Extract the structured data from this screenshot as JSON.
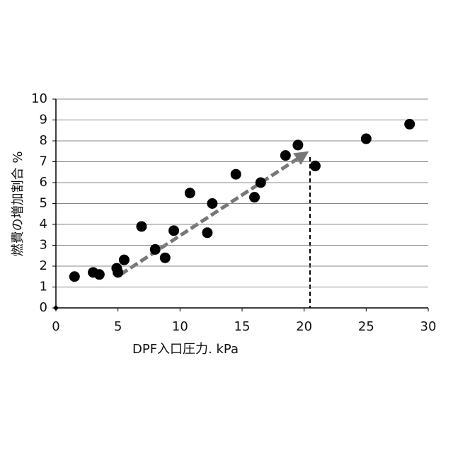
{
  "chart_data": {
    "type": "scatter",
    "x_label": "DPF入口圧力. kPa",
    "y_label": "燃費の増加割合  %",
    "xlim": [
      0,
      30
    ],
    "xticks": [
      0,
      5,
      10,
      15,
      20,
      25,
      30
    ],
    "ylim": [
      0,
      10
    ],
    "yticks": [
      0,
      1,
      2,
      3,
      4,
      5,
      6,
      7,
      8,
      9,
      10
    ],
    "grid": true,
    "series": [
      {
        "color": "#000000",
        "marker": "circle",
        "x": [
          1.5,
          3.0,
          3.5,
          4.9,
          5.0,
          5.5,
          6.9,
          8.0,
          8.8,
          9.5,
          10.8,
          12.2,
          12.6,
          14.5,
          16.0,
          16.5,
          18.5,
          19.5,
          20.9,
          25.0,
          28.5
        ],
        "values": [
          1.5,
          1.7,
          1.6,
          1.9,
          1.7,
          2.3,
          3.9,
          2.8,
          2.4,
          3.7,
          5.5,
          3.6,
          5.0,
          6.4,
          5.3,
          6.0,
          7.3,
          7.8,
          6.8,
          8.1,
          8.8
        ]
      },
      {
        "color": "#000000",
        "marker": "diamond",
        "x": [
          0
        ],
        "values": [
          0
        ]
      }
    ]
  }
}
